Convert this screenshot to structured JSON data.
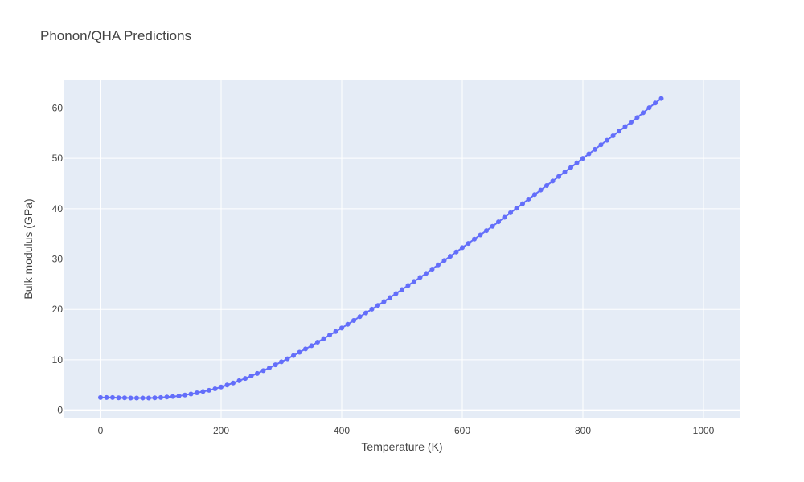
{
  "chart_data": {
    "type": "line",
    "title": "Phonon/QHA Predictions",
    "xlabel": "Temperature (K)",
    "ylabel": "Bulk modulus (GPa)",
    "xlim": [
      -60,
      1060
    ],
    "ylim": [
      -1.5,
      65.5
    ],
    "xticks": [
      0,
      200,
      400,
      600,
      800,
      1000
    ],
    "yticks": [
      0,
      10,
      20,
      30,
      40,
      50,
      60
    ],
    "grid": true,
    "legend": "none",
    "background": "#E5ECF6",
    "line_color": "#636EFA",
    "mode": "lines+markers",
    "x_start": 0,
    "x_step": 10,
    "y": [
      2.5,
      2.5,
      2.5,
      2.45,
      2.45,
      2.4,
      2.4,
      2.4,
      2.4,
      2.45,
      2.5,
      2.6,
      2.7,
      2.8,
      3.0,
      3.2,
      3.45,
      3.7,
      3.95,
      4.25,
      4.6,
      5.0,
      5.4,
      5.85,
      6.3,
      6.8,
      7.3,
      7.85,
      8.4,
      9.0,
      9.6,
      10.2,
      10.85,
      11.5,
      12.15,
      12.8,
      13.5,
      14.2,
      14.9,
      15.6,
      16.3,
      17.05,
      17.8,
      18.55,
      19.3,
      20.05,
      20.8,
      21.55,
      22.35,
      23.15,
      23.95,
      24.75,
      25.55,
      26.35,
      27.15,
      28.0,
      28.85,
      29.7,
      30.55,
      31.4,
      32.25,
      33.1,
      33.95,
      34.8,
      35.65,
      36.5,
      37.4,
      38.3,
      39.2,
      40.1,
      41.0,
      41.9,
      42.8,
      43.7,
      44.6,
      45.5,
      46.4,
      47.3,
      48.2,
      49.1,
      50.0,
      50.9,
      51.8,
      52.7,
      53.6,
      54.5,
      55.4,
      56.3,
      57.2,
      58.1,
      59.05,
      60.05,
      61.0,
      61.9
    ]
  }
}
